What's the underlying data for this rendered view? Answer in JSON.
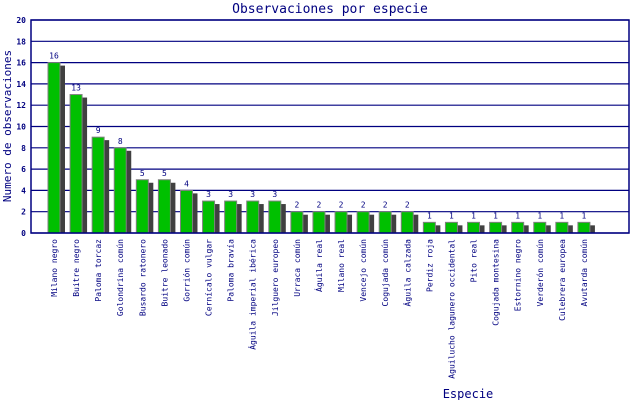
{
  "chart_data": {
    "type": "bar",
    "title": "Observaciones por especie",
    "xlabel": "Especie",
    "ylabel": "Numero de observaciones",
    "ylim": [
      0,
      20
    ],
    "yticks": [
      0,
      2,
      4,
      6,
      8,
      10,
      12,
      14,
      16,
      18,
      20
    ],
    "grid": true,
    "categories": [
      "Milano negro",
      "Buitre negro",
      "Paloma torcaz",
      "Golondrina común",
      "Busardo ratonero",
      "Buitre leonado",
      "Gorrión común",
      "Cernícalo vulgar",
      "Paloma bravía",
      "Águila imperial ibérica",
      "Jilguero europeo",
      "Urraca común",
      "Águila real",
      "Milano real",
      "Vencejo común",
      "Cogujada común",
      "Águila calzada",
      "Perdiz roja",
      "Aguilucho lagunero occidental",
      "Pito real",
      "Cogujada montesina",
      "Estornino negro",
      "Verderón común",
      "Culebrera europea",
      "Avutarda común"
    ],
    "values": [
      16,
      13,
      9,
      8,
      5,
      5,
      4,
      3,
      3,
      3,
      3,
      2,
      2,
      2,
      2,
      2,
      2,
      1,
      1,
      1,
      1,
      1,
      1,
      1,
      1
    ],
    "colors": {
      "bar": "#00c000",
      "bar_border": "#808080",
      "shadow": "#404040",
      "axis": "#000080",
      "text": "#000080"
    }
  }
}
